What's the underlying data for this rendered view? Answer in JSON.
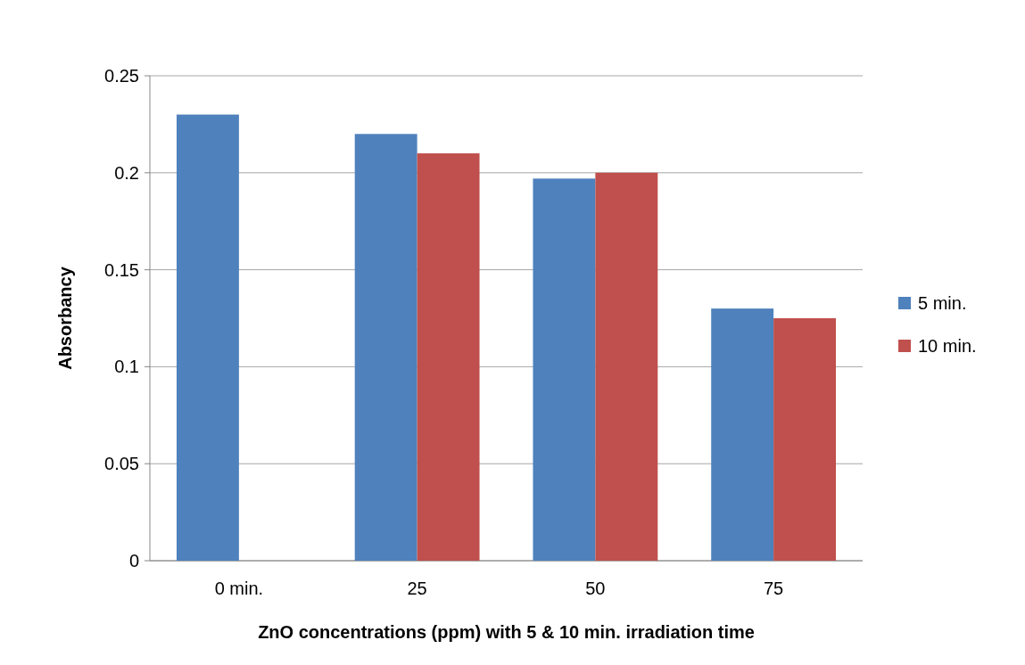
{
  "chart_data": {
    "type": "bar",
    "xlabel": "ZnO concentrations (ppm) with 5 & 10 min. irradiation time",
    "ylabel": "Absorbancy",
    "categories": [
      "0 min.",
      "25",
      "50",
      "75"
    ],
    "series": [
      {
        "name": "5 min.",
        "color": "#4f81bd",
        "values": [
          0.23,
          0.22,
          0.197,
          0.13
        ]
      },
      {
        "name": "10 min.",
        "color": "#c0504d",
        "values": [
          null,
          0.21,
          0.2,
          0.125
        ]
      }
    ],
    "ylim": [
      0,
      0.25
    ],
    "yticks": [
      0,
      0.05,
      0.1,
      0.15,
      0.2,
      0.25
    ],
    "grid": "y",
    "legend": "right"
  }
}
